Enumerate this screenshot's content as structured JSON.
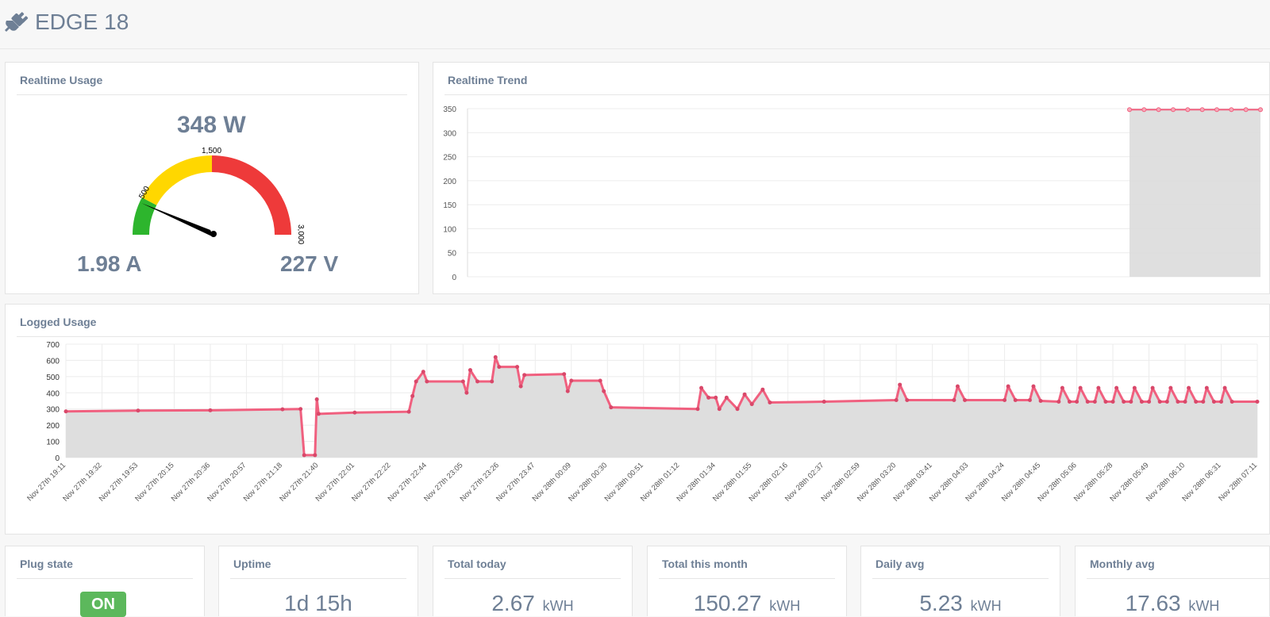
{
  "app": {
    "title": "EDGE 18",
    "icon": "plug-icon"
  },
  "realtime_usage": {
    "title": "Realtime Usage",
    "watts": "348 W",
    "amps": "1.98 A",
    "volts": "227 V",
    "gauge": {
      "value": 348,
      "min": 0,
      "max": 3000,
      "tick_labels": [
        "500",
        "1,500",
        "3,000"
      ],
      "colors": {
        "low": "#2db52d",
        "mid": "#ffd700",
        "high": "#ee3a3a",
        "needle": "#000000"
      }
    }
  },
  "realtime_trend": {
    "title": "Realtime Trend",
    "chart_data": {
      "type": "area",
      "y_ticks": [
        "350",
        "300",
        "250",
        "200",
        "150",
        "100",
        "50",
        "0"
      ],
      "ylim": [
        0,
        350
      ],
      "values": [
        348,
        348,
        348,
        348,
        348,
        348,
        348,
        348,
        348,
        348
      ],
      "color": "#f0607f"
    }
  },
  "logged_usage": {
    "title": "Logged Usage",
    "chart_data": {
      "type": "area",
      "y_ticks": [
        "700",
        "600",
        "500",
        "400",
        "300",
        "200",
        "100",
        "0"
      ],
      "ylim": [
        0,
        700
      ],
      "x_labels": [
        "Nov 27th 19:11",
        "Nov 27th 19:32",
        "Nov 27th 19:53",
        "Nov 27th 20:15",
        "Nov 27th 20:36",
        "Nov 27th 20:57",
        "Nov 27th 21:18",
        "Nov 27th 21:40",
        "Nov 27th 22:01",
        "Nov 27th 22:22",
        "Nov 27th 22:44",
        "Nov 27th 23:05",
        "Nov 27th 23:26",
        "Nov 27th 23:47",
        "Nov 28th 00:09",
        "Nov 28th 00:30",
        "Nov 28th 00:51",
        "Nov 28th 01:12",
        "Nov 28th 01:34",
        "Nov 28th 01:55",
        "Nov 28th 02:16",
        "Nov 28th 02:37",
        "Nov 28th 02:59",
        "Nov 28th 03:20",
        "Nov 28th 03:41",
        "Nov 28th 04:03",
        "Nov 28th 04:24",
        "Nov 28th 04:45",
        "Nov 28th 05:06",
        "Nov 28th 05:28",
        "Nov 28th 05:49",
        "Nov 28th 06:10",
        "Nov 28th 06:31",
        "Nov 28th 07:11"
      ],
      "series": [
        {
          "x": 0,
          "y": 285
        },
        {
          "x": 2,
          "y": 290
        },
        {
          "x": 4,
          "y": 292
        },
        {
          "x": 6,
          "y": 298
        },
        {
          "x": 6.5,
          "y": 300
        },
        {
          "x": 6.6,
          "y": 15
        },
        {
          "x": 6.9,
          "y": 15
        },
        {
          "x": 6.95,
          "y": 360
        },
        {
          "x": 7.0,
          "y": 270
        },
        {
          "x": 8,
          "y": 278
        },
        {
          "x": 9.5,
          "y": 283
        },
        {
          "x": 9.6,
          "y": 380
        },
        {
          "x": 9.7,
          "y": 470
        },
        {
          "x": 9.9,
          "y": 530
        },
        {
          "x": 10,
          "y": 470
        },
        {
          "x": 11,
          "y": 470
        },
        {
          "x": 11.1,
          "y": 400
        },
        {
          "x": 11.2,
          "y": 540
        },
        {
          "x": 11.4,
          "y": 470
        },
        {
          "x": 11.8,
          "y": 470
        },
        {
          "x": 11.9,
          "y": 620
        },
        {
          "x": 12.0,
          "y": 560
        },
        {
          "x": 12.5,
          "y": 560
        },
        {
          "x": 12.6,
          "y": 440
        },
        {
          "x": 12.7,
          "y": 510
        },
        {
          "x": 13.8,
          "y": 515
        },
        {
          "x": 13.9,
          "y": 410
        },
        {
          "x": 14.0,
          "y": 475
        },
        {
          "x": 14.8,
          "y": 475
        },
        {
          "x": 14.9,
          "y": 410
        },
        {
          "x": 15.1,
          "y": 310
        },
        {
          "x": 17.5,
          "y": 300
        },
        {
          "x": 17.6,
          "y": 430
        },
        {
          "x": 17.8,
          "y": 370
        },
        {
          "x": 18.0,
          "y": 370
        },
        {
          "x": 18.1,
          "y": 300
        },
        {
          "x": 18.3,
          "y": 370
        },
        {
          "x": 18.6,
          "y": 300
        },
        {
          "x": 18.8,
          "y": 390
        },
        {
          "x": 19.0,
          "y": 330
        },
        {
          "x": 19.3,
          "y": 420
        },
        {
          "x": 19.5,
          "y": 340
        },
        {
          "x": 21,
          "y": 345
        },
        {
          "x": 23,
          "y": 355
        },
        {
          "x": 23.1,
          "y": 450
        },
        {
          "x": 23.3,
          "y": 355
        },
        {
          "x": 24.6,
          "y": 355
        },
        {
          "x": 24.7,
          "y": 440
        },
        {
          "x": 24.9,
          "y": 355
        },
        {
          "x": 26.0,
          "y": 355
        },
        {
          "x": 26.1,
          "y": 440
        },
        {
          "x": 26.3,
          "y": 355
        },
        {
          "x": 26.7,
          "y": 355
        },
        {
          "x": 26.8,
          "y": 440
        },
        {
          "x": 27.0,
          "y": 350
        },
        {
          "x": 27.5,
          "y": 345
        },
        {
          "x": 27.6,
          "y": 430
        },
        {
          "x": 27.8,
          "y": 345
        },
        {
          "x": 28.0,
          "y": 345
        },
        {
          "x": 28.1,
          "y": 430
        },
        {
          "x": 28.3,
          "y": 345
        },
        {
          "x": 28.5,
          "y": 345
        },
        {
          "x": 28.6,
          "y": 430
        },
        {
          "x": 28.8,
          "y": 345
        },
        {
          "x": 29.0,
          "y": 345
        },
        {
          "x": 29.1,
          "y": 430
        },
        {
          "x": 29.3,
          "y": 345
        },
        {
          "x": 29.5,
          "y": 345
        },
        {
          "x": 29.6,
          "y": 430
        },
        {
          "x": 29.8,
          "y": 345
        },
        {
          "x": 30.0,
          "y": 345
        },
        {
          "x": 30.1,
          "y": 430
        },
        {
          "x": 30.3,
          "y": 345
        },
        {
          "x": 30.5,
          "y": 345
        },
        {
          "x": 30.6,
          "y": 430
        },
        {
          "x": 30.8,
          "y": 345
        },
        {
          "x": 31.0,
          "y": 345
        },
        {
          "x": 31.1,
          "y": 430
        },
        {
          "x": 31.3,
          "y": 345
        },
        {
          "x": 31.5,
          "y": 345
        },
        {
          "x": 31.6,
          "y": 430
        },
        {
          "x": 31.8,
          "y": 345
        },
        {
          "x": 32.0,
          "y": 345
        },
        {
          "x": 32.1,
          "y": 430
        },
        {
          "x": 32.3,
          "y": 345
        },
        {
          "x": 33.0,
          "y": 345
        }
      ],
      "color": "#f0607f"
    }
  },
  "stats": [
    {
      "title": "Plug state",
      "value": "ON",
      "unit": ""
    },
    {
      "title": "Uptime",
      "value": "1d 15h",
      "unit": ""
    },
    {
      "title": "Total today",
      "value": "2.67",
      "unit": "kWH"
    },
    {
      "title": "Total this month",
      "value": "150.27",
      "unit": "kWH"
    },
    {
      "title": "Daily avg",
      "value": "5.23",
      "unit": "kWH"
    },
    {
      "title": "Monthly avg",
      "value": "17.63",
      "unit": "kWH"
    }
  ]
}
